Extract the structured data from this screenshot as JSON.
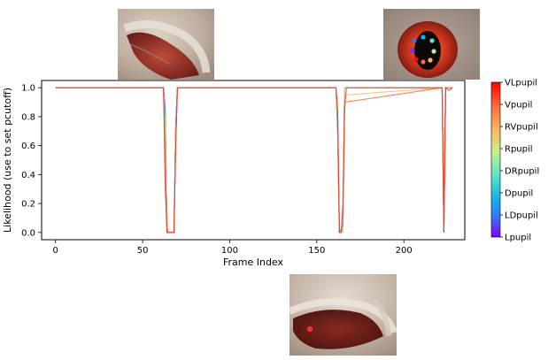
{
  "chart_data": {
    "type": "line",
    "xlabel": "Frame Index",
    "ylabel": "Likelihood (use to set pcutoff)",
    "xlim": [
      -8,
      235
    ],
    "ylim": [
      -0.05,
      1.05
    ],
    "xticks": [
      0,
      50,
      100,
      150,
      200
    ],
    "yticks": [
      0.0,
      0.2,
      0.4,
      0.6,
      0.8,
      1.0
    ],
    "grid": false,
    "colorbar": {
      "labels": [
        "VLpupil",
        "Vpupil",
        "RVpupil",
        "Rpupil",
        "DRpupil",
        "Dpupil",
        "LDpupil",
        "Lpupil"
      ],
      "colors": [
        "#ff0000",
        "#ff6a3a",
        "#ffb360",
        "#c7f08a",
        "#58e5c6",
        "#13b3eb",
        "#3d6df9",
        "#8000ff"
      ]
    },
    "series": [
      {
        "color": "#8000ff",
        "x": [
          0,
          62,
          63,
          64,
          65,
          68,
          69,
          70,
          161,
          162,
          163,
          165,
          166,
          222,
          223,
          224,
          228
        ],
        "y": [
          1.0,
          1.0,
          0.85,
          0.0,
          0.0,
          0.0,
          0.75,
          1.0,
          1.0,
          0.7,
          0.0,
          0.0,
          1.0,
          1.0,
          0.0,
          1.0,
          1.0
        ]
      },
      {
        "color": "#3d6df9",
        "x": [
          0,
          62,
          63,
          64,
          65,
          68,
          69,
          70,
          161,
          162,
          163,
          165,
          166,
          222,
          223,
          224,
          228
        ],
        "y": [
          1.0,
          1.0,
          0.82,
          0.0,
          0.0,
          0.0,
          0.72,
          1.0,
          1.0,
          0.72,
          0.0,
          0.0,
          1.0,
          1.0,
          0.0,
          1.0,
          1.0
        ]
      },
      {
        "color": "#13b3eb",
        "x": [
          0,
          62,
          63,
          64,
          65,
          68,
          69,
          70,
          161,
          162,
          163,
          165,
          166,
          222,
          223,
          224,
          228
        ],
        "y": [
          1.0,
          1.0,
          0.78,
          0.01,
          0.0,
          0.0,
          0.7,
          1.0,
          1.0,
          0.74,
          0.0,
          0.0,
          1.0,
          1.0,
          0.01,
          1.0,
          1.0
        ]
      },
      {
        "color": "#58e5c6",
        "x": [
          0,
          62,
          63,
          64,
          65,
          68,
          69,
          70,
          161,
          162,
          163,
          165,
          166,
          222,
          223,
          224,
          228
        ],
        "y": [
          1.0,
          1.0,
          0.75,
          0.01,
          0.0,
          0.0,
          0.68,
          1.0,
          1.0,
          0.76,
          0.0,
          0.0,
          1.0,
          1.0,
          0.02,
          1.0,
          1.0
        ]
      },
      {
        "color": "#c7f08a",
        "x": [
          0,
          62,
          63,
          64,
          65,
          68,
          69,
          70,
          161,
          162,
          163,
          165,
          166,
          222,
          223,
          224,
          228
        ],
        "y": [
          1.0,
          1.0,
          0.7,
          0.02,
          0.0,
          0.0,
          0.66,
          1.0,
          1.0,
          0.78,
          0.0,
          0.0,
          1.0,
          1.0,
          0.02,
          1.0,
          1.0
        ]
      },
      {
        "color": "#ffb360",
        "x": [
          0,
          62,
          63,
          64,
          65,
          68,
          69,
          70,
          161,
          162,
          163,
          165,
          166,
          222,
          223,
          224,
          228
        ],
        "y": [
          1.0,
          1.0,
          0.6,
          0.02,
          0.0,
          0.0,
          0.64,
          1.0,
          1.0,
          0.8,
          0.0,
          0.02,
          0.95,
          1.0,
          0.03,
          1.0,
          1.0
        ]
      },
      {
        "color": "#ff6a3a",
        "x": [
          0,
          62,
          63,
          64,
          65,
          68,
          69,
          70,
          161,
          162,
          163,
          165,
          166,
          222,
          223,
          224,
          228
        ],
        "y": [
          1.0,
          1.0,
          0.5,
          0.03,
          0.0,
          0.0,
          0.62,
          1.0,
          1.0,
          0.82,
          0.0,
          0.05,
          0.9,
          1.0,
          0.03,
          1.0,
          1.0
        ]
      },
      {
        "color": "#e8352a",
        "x": [
          0,
          62,
          63,
          64,
          65,
          68,
          69,
          70,
          161,
          162,
          163,
          164,
          165,
          166,
          167,
          222,
          223,
          224,
          226,
          228
        ],
        "y": [
          1.0,
          1.0,
          0.3,
          0.0,
          0.0,
          0.0,
          0.6,
          1.0,
          1.0,
          0.85,
          0.0,
          0.0,
          0.2,
          0.85,
          1.0,
          1.0,
          0.0,
          1.0,
          0.98,
          1.0
        ]
      }
    ]
  }
}
